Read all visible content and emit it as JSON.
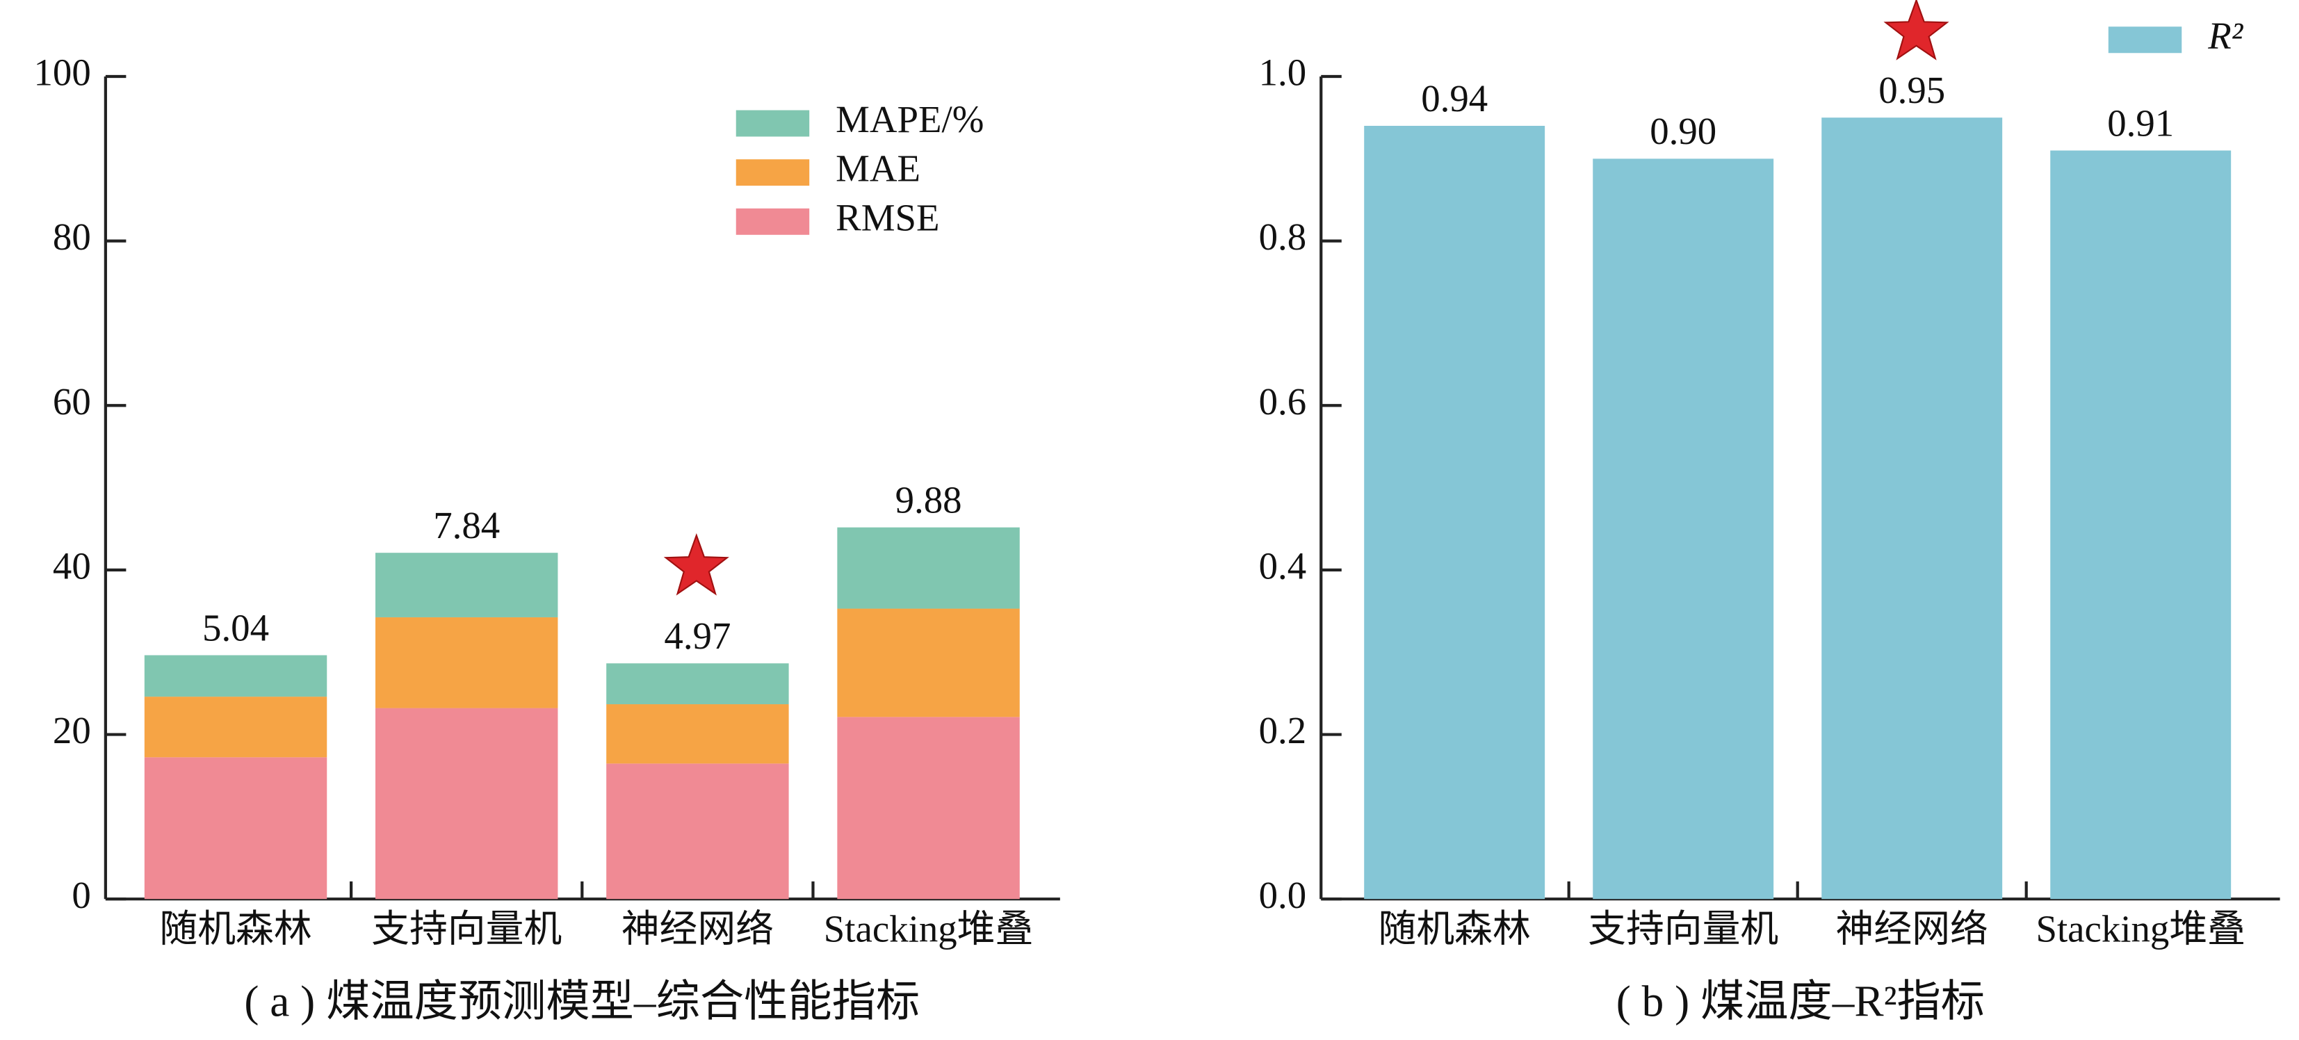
{
  "chart_data": [
    {
      "type": "stacked_bar",
      "title": "( a ) 煤温度预测模型–综合性能指标",
      "categories": [
        "随机森林",
        "支持向量机",
        "神经网络",
        "Stacking堆叠"
      ],
      "series": [
        {
          "name": "RMSE",
          "color": "#f08a94",
          "values": [
            17.23,
            23.21,
            16.47,
            22.13
          ]
        },
        {
          "name": "MAE",
          "color": "#f6a445",
          "values": [
            7.37,
            11.04,
            7.21,
            13.17
          ]
        },
        {
          "name": "MAPE/%",
          "color": "#80c6b0",
          "values": [
            5.04,
            7.84,
            4.97,
            9.88
          ]
        }
      ],
      "ylim": [
        0,
        100
      ],
      "yticks": [
        0,
        20,
        40,
        60,
        80,
        100
      ]
    },
    {
      "type": "bar",
      "title": "( b ) 煤温度–R²指标",
      "categories": [
        "随机森林",
        "支持向量机",
        "神经网络",
        "Stacking堆叠"
      ],
      "series": [
        {
          "name": "R²",
          "color": "#85c6d6",
          "values": [
            0.94,
            0.9,
            0.95,
            0.91
          ],
          "value_labels": [
            "0.94",
            "0.90",
            "0.95",
            "0.91"
          ]
        }
      ],
      "ylim": [
        0,
        1
      ],
      "yticks": [
        {
          "value": 0,
          "label": "0.0"
        },
        {
          "value": 0.2,
          "label": "0.2"
        },
        {
          "value": 0.4,
          "label": "0.4"
        },
        {
          "value": 0.6,
          "label": "0.6"
        },
        {
          "value": 0.8,
          "label": "0.8"
        },
        {
          "value": 1,
          "label": "1.0"
        }
      ]
    }
  ]
}
